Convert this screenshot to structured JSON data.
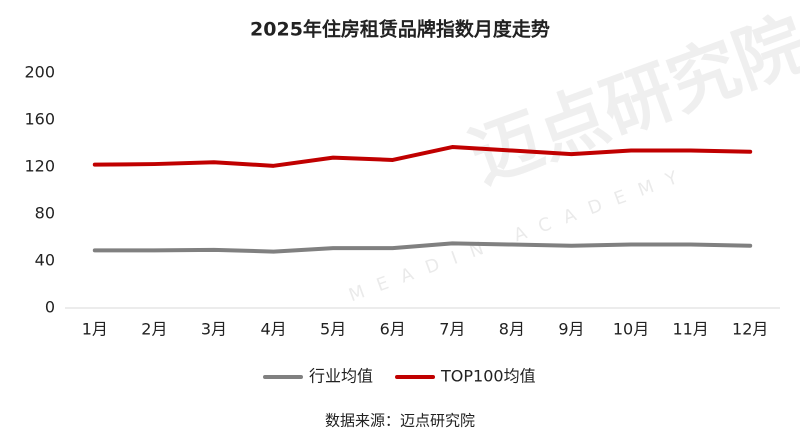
{
  "chart_data": {
    "type": "line",
    "title": "2025年住房租赁品牌指数月度走势",
    "categories": [
      "1月",
      "2月",
      "3月",
      "4月",
      "5月",
      "6月",
      "7月",
      "8月",
      "9月",
      "10月",
      "11月",
      "12月"
    ],
    "series": [
      {
        "name": "行业均值",
        "color": "#808080",
        "values": [
          49,
          49,
          49.5,
          48,
          51,
          51,
          55,
          54,
          53,
          54,
          54,
          53
        ]
      },
      {
        "name": "TOP100均值",
        "color": "#c00000",
        "values": [
          122,
          122.5,
          124,
          121,
          128,
          126,
          137,
          134,
          131,
          134,
          134,
          133
        ]
      }
    ],
    "ylim": [
      0,
      200
    ],
    "yticks": [
      0,
      40,
      80,
      120,
      160,
      200
    ],
    "grid": false,
    "legend": "bottom",
    "source": "数据来源：迈点研究院",
    "watermark": "迈点研究院",
    "watermark_sub": "MEADIN ACADEMY"
  }
}
